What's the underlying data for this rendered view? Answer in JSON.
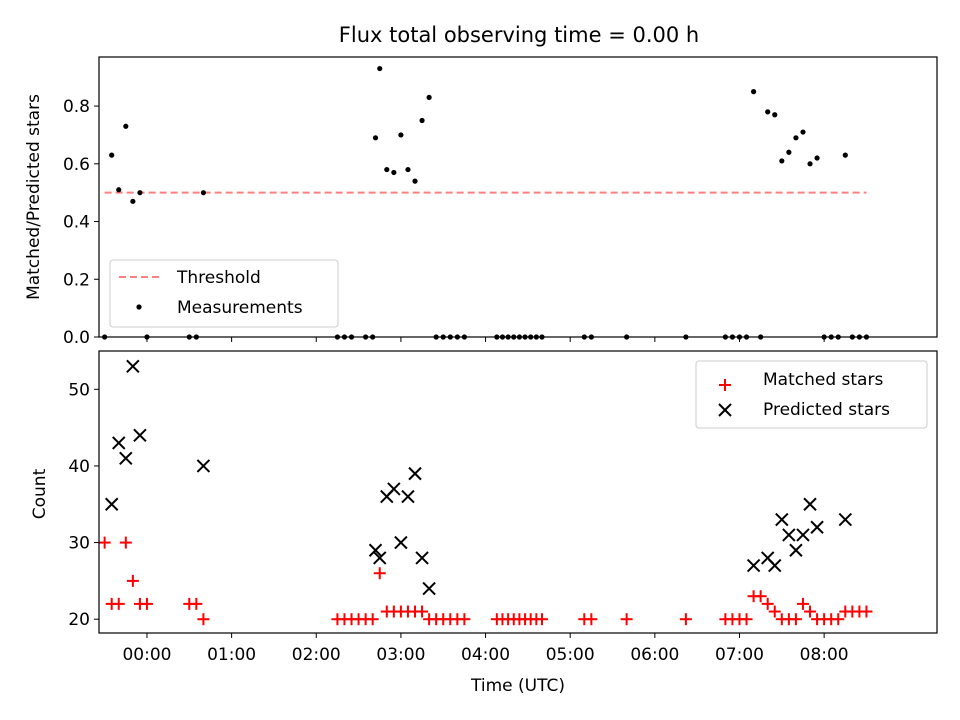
{
  "chart_data": [
    {
      "type": "scatter",
      "title": "Flux total observing time = 0.00 h",
      "ylabel": "Matched/Predicted stars",
      "xlim": [
        "23:26",
        "09:20"
      ],
      "ylim": [
        0.0,
        0.97
      ],
      "yticks": [
        "0.0",
        "0.2",
        "0.4",
        "0.6",
        "0.8"
      ],
      "legend": {
        "position": "lower-left",
        "entries": [
          "Threshold",
          "Measurements"
        ]
      },
      "threshold": {
        "name": "Threshold",
        "y": 0.5,
        "x_start": "23:30",
        "x_end": "08:30",
        "color": "#ff8080"
      },
      "series": [
        {
          "name": "Measurements",
          "color": "#000000",
          "points": [
            [
              "23:30",
              0.0
            ],
            [
              "23:35",
              0.63
            ],
            [
              "23:40",
              0.51
            ],
            [
              "23:45",
              0.73
            ],
            [
              "23:50",
              0.47
            ],
            [
              "23:55",
              0.5
            ],
            [
              "00:00",
              0.0
            ],
            [
              "00:30",
              0.0
            ],
            [
              "00:35",
              0.0
            ],
            [
              "00:40",
              0.5
            ],
            [
              "02:15",
              0.0
            ],
            [
              "02:20",
              0.0
            ],
            [
              "02:25",
              0.0
            ],
            [
              "02:35",
              0.0
            ],
            [
              "02:40",
              0.0
            ],
            [
              "02:42",
              0.69
            ],
            [
              "02:45",
              0.93
            ],
            [
              "02:50",
              0.58
            ],
            [
              "02:55",
              0.57
            ],
            [
              "03:00",
              0.7
            ],
            [
              "03:05",
              0.58
            ],
            [
              "03:10",
              0.54
            ],
            [
              "03:15",
              0.75
            ],
            [
              "03:20",
              0.83
            ],
            [
              "03:25",
              0.0
            ],
            [
              "03:30",
              0.0
            ],
            [
              "03:35",
              0.0
            ],
            [
              "03:40",
              0.0
            ],
            [
              "03:45",
              0.0
            ],
            [
              "04:08",
              0.0
            ],
            [
              "04:12",
              0.0
            ],
            [
              "04:16",
              0.0
            ],
            [
              "04:20",
              0.0
            ],
            [
              "04:24",
              0.0
            ],
            [
              "04:28",
              0.0
            ],
            [
              "04:32",
              0.0
            ],
            [
              "04:36",
              0.0
            ],
            [
              "04:40",
              0.0
            ],
            [
              "05:10",
              0.0
            ],
            [
              "05:15",
              0.0
            ],
            [
              "05:40",
              0.0
            ],
            [
              "06:22",
              0.0
            ],
            [
              "06:50",
              0.0
            ],
            [
              "06:55",
              0.0
            ],
            [
              "07:00",
              0.0
            ],
            [
              "07:05",
              0.0
            ],
            [
              "07:10",
              0.85
            ],
            [
              "07:15",
              0.0
            ],
            [
              "07:20",
              0.78
            ],
            [
              "07:25",
              0.77
            ],
            [
              "07:30",
              0.61
            ],
            [
              "07:35",
              0.64
            ],
            [
              "07:40",
              0.69
            ],
            [
              "07:45",
              0.71
            ],
            [
              "07:50",
              0.6
            ],
            [
              "07:55",
              0.62
            ],
            [
              "08:00",
              0.0
            ],
            [
              "08:05",
              0.0
            ],
            [
              "08:10",
              0.0
            ],
            [
              "08:15",
              0.63
            ],
            [
              "08:20",
              0.0
            ],
            [
              "08:25",
              0.0
            ],
            [
              "08:30",
              0.0
            ]
          ]
        }
      ]
    },
    {
      "type": "scatter",
      "ylabel": "Count",
      "xlabel": "Time (UTC)",
      "xlim": [
        "23:26",
        "09:20"
      ],
      "ylim": [
        18.2,
        55.0
      ],
      "yticks": [
        "20",
        "30",
        "40",
        "50"
      ],
      "xticks": [
        "00:00",
        "01:00",
        "02:00",
        "03:00",
        "04:00",
        "05:00",
        "06:00",
        "07:00",
        "08:00"
      ],
      "legend": {
        "position": "upper-right",
        "entries": [
          "Matched stars",
          "Predicted stars"
        ]
      },
      "series": [
        {
          "name": "Matched stars",
          "marker": "plus",
          "color": "#ff0000",
          "points": [
            [
              "23:30",
              30
            ],
            [
              "23:35",
              22
            ],
            [
              "23:40",
              22
            ],
            [
              "23:45",
              30
            ],
            [
              "23:50",
              25
            ],
            [
              "23:55",
              22
            ],
            [
              "00:00",
              22
            ],
            [
              "00:30",
              22
            ],
            [
              "00:35",
              22
            ],
            [
              "00:40",
              20
            ],
            [
              "02:15",
              20
            ],
            [
              "02:20",
              20
            ],
            [
              "02:25",
              20
            ],
            [
              "02:30",
              20
            ],
            [
              "02:35",
              20
            ],
            [
              "02:40",
              20
            ],
            [
              "02:45",
              26
            ],
            [
              "02:50",
              21
            ],
            [
              "02:55",
              21
            ],
            [
              "03:00",
              21
            ],
            [
              "03:05",
              21
            ],
            [
              "03:10",
              21
            ],
            [
              "03:15",
              21
            ],
            [
              "03:20",
              20
            ],
            [
              "03:25",
              20
            ],
            [
              "03:30",
              20
            ],
            [
              "03:35",
              20
            ],
            [
              "03:40",
              20
            ],
            [
              "03:45",
              20
            ],
            [
              "04:08",
              20
            ],
            [
              "04:12",
              20
            ],
            [
              "04:16",
              20
            ],
            [
              "04:20",
              20
            ],
            [
              "04:24",
              20
            ],
            [
              "04:28",
              20
            ],
            [
              "04:32",
              20
            ],
            [
              "04:36",
              20
            ],
            [
              "04:40",
              20
            ],
            [
              "05:10",
              20
            ],
            [
              "05:15",
              20
            ],
            [
              "05:40",
              20
            ],
            [
              "06:22",
              20
            ],
            [
              "06:50",
              20
            ],
            [
              "06:55",
              20
            ],
            [
              "07:00",
              20
            ],
            [
              "07:05",
              20
            ],
            [
              "07:10",
              23
            ],
            [
              "07:15",
              23
            ],
            [
              "07:20",
              22
            ],
            [
              "07:25",
              21
            ],
            [
              "07:30",
              20
            ],
            [
              "07:35",
              20
            ],
            [
              "07:40",
              20
            ],
            [
              "07:45",
              22
            ],
            [
              "07:50",
              21
            ],
            [
              "07:55",
              20
            ],
            [
              "08:00",
              20
            ],
            [
              "08:05",
              20
            ],
            [
              "08:10",
              20
            ],
            [
              "08:15",
              21
            ],
            [
              "08:20",
              21
            ],
            [
              "08:25",
              21
            ],
            [
              "08:30",
              21
            ]
          ]
        },
        {
          "name": "Predicted stars",
          "marker": "x",
          "color": "#000000",
          "points": [
            [
              "23:35",
              35
            ],
            [
              "23:40",
              43
            ],
            [
              "23:45",
              41
            ],
            [
              "23:50",
              53
            ],
            [
              "23:55",
              44
            ],
            [
              "00:40",
              40
            ],
            [
              "02:42",
              29
            ],
            [
              "02:45",
              28
            ],
            [
              "02:50",
              36
            ],
            [
              "02:55",
              37
            ],
            [
              "03:00",
              30
            ],
            [
              "03:05",
              36
            ],
            [
              "03:10",
              39
            ],
            [
              "03:15",
              28
            ],
            [
              "03:20",
              24
            ],
            [
              "07:10",
              27
            ],
            [
              "07:20",
              28
            ],
            [
              "07:25",
              27
            ],
            [
              "07:30",
              33
            ],
            [
              "07:35",
              31
            ],
            [
              "07:40",
              29
            ],
            [
              "07:45",
              31
            ],
            [
              "07:50",
              35
            ],
            [
              "07:55",
              32
            ],
            [
              "08:15",
              33
            ]
          ]
        }
      ]
    }
  ]
}
